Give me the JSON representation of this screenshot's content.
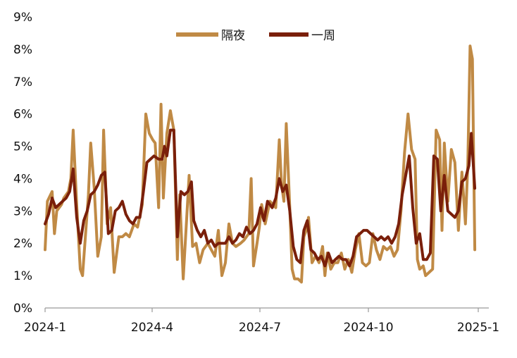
{
  "chart_data": {
    "type": "line",
    "title": "",
    "xlabel": "",
    "ylabel": "",
    "x_ticks": [
      "2024-1",
      "2024-4",
      "2024-7",
      "2024-10",
      "2025-1"
    ],
    "y_ticks": [
      "0%",
      "1%",
      "2%",
      "3%",
      "4%",
      "5%",
      "6%",
      "7%",
      "8%",
      "9%"
    ],
    "xlim": [
      "2024-01-02",
      "2025-01-15"
    ],
    "ylim": [
      0,
      9
    ],
    "grid": false,
    "legend_position": "top-center",
    "series": [
      {
        "name": "隔夜",
        "color": "#C08A45",
        "points": [
          [
            "2024-01-02",
            1.8
          ],
          [
            "2024-01-04",
            3.3
          ],
          [
            "2024-01-08",
            3.6
          ],
          [
            "2024-01-10",
            2.3
          ],
          [
            "2024-01-12",
            3.0
          ],
          [
            "2024-01-16",
            3.2
          ],
          [
            "2024-01-18",
            3.4
          ],
          [
            "2024-01-22",
            3.6
          ],
          [
            "2024-01-24",
            4.0
          ],
          [
            "2024-01-26",
            5.5
          ],
          [
            "2024-01-29",
            3.2
          ],
          [
            "2024-02-01",
            1.2
          ],
          [
            "2024-02-03",
            1.0
          ],
          [
            "2024-02-06",
            2.5
          ],
          [
            "2024-02-08",
            3.5
          ],
          [
            "2024-02-10",
            5.1
          ],
          [
            "2024-02-13",
            3.7
          ],
          [
            "2024-02-16",
            1.6
          ],
          [
            "2024-02-19",
            2.2
          ],
          [
            "2024-02-21",
            5.5
          ],
          [
            "2024-02-24",
            2.6
          ],
          [
            "2024-02-27",
            3.1
          ],
          [
            "2024-03-01",
            1.1
          ],
          [
            "2024-03-05",
            2.2
          ],
          [
            "2024-03-08",
            2.2
          ],
          [
            "2024-03-11",
            2.3
          ],
          [
            "2024-03-14",
            2.2
          ],
          [
            "2024-03-18",
            2.6
          ],
          [
            "2024-03-21",
            2.5
          ],
          [
            "2024-03-25",
            3.2
          ],
          [
            "2024-03-28",
            6.0
          ],
          [
            "2024-03-31",
            5.4
          ],
          [
            "2024-04-03",
            5.2
          ],
          [
            "2024-04-05",
            5.1
          ],
          [
            "2024-04-08",
            3.1
          ],
          [
            "2024-04-10",
            6.3
          ],
          [
            "2024-04-12",
            3.4
          ],
          [
            "2024-04-15",
            5.4
          ],
          [
            "2024-04-18",
            6.1
          ],
          [
            "2024-04-21",
            5.5
          ],
          [
            "2024-04-24",
            1.5
          ],
          [
            "2024-04-26",
            3.5
          ],
          [
            "2024-04-29",
            0.9
          ],
          [
            "2024-05-02",
            2.8
          ],
          [
            "2024-05-04",
            4.1
          ],
          [
            "2024-05-07",
            1.9
          ],
          [
            "2024-05-10",
            2.0
          ],
          [
            "2024-05-13",
            1.4
          ],
          [
            "2024-05-16",
            1.8
          ],
          [
            "2024-05-20",
            2.0
          ],
          [
            "2024-05-23",
            1.8
          ],
          [
            "2024-05-26",
            1.6
          ],
          [
            "2024-05-29",
            2.4
          ],
          [
            "2024-06-01",
            1.0
          ],
          [
            "2024-06-04",
            1.4
          ],
          [
            "2024-06-07",
            2.6
          ],
          [
            "2024-06-10",
            2.0
          ],
          [
            "2024-06-13",
            1.9
          ],
          [
            "2024-06-17",
            2.0
          ],
          [
            "2024-06-20",
            2.1
          ],
          [
            "2024-06-24",
            2.3
          ],
          [
            "2024-06-26",
            4.0
          ],
          [
            "2024-06-28",
            1.3
          ],
          [
            "2024-07-01",
            2.0
          ],
          [
            "2024-07-03",
            2.5
          ],
          [
            "2024-07-05",
            3.2
          ],
          [
            "2024-07-08",
            2.6
          ],
          [
            "2024-07-12",
            3.3
          ],
          [
            "2024-07-17",
            3.1
          ],
          [
            "2024-07-20",
            5.2
          ],
          [
            "2024-07-22",
            3.8
          ],
          [
            "2024-07-24",
            3.3
          ],
          [
            "2024-07-26",
            5.7
          ],
          [
            "2024-07-29",
            3.1
          ],
          [
            "2024-07-31",
            1.2
          ],
          [
            "2024-08-02",
            0.9
          ],
          [
            "2024-08-05",
            0.9
          ],
          [
            "2024-08-08",
            0.8
          ],
          [
            "2024-08-10",
            2.2
          ],
          [
            "2024-08-12",
            2.4
          ],
          [
            "2024-08-14",
            2.8
          ],
          [
            "2024-08-17",
            1.4
          ],
          [
            "2024-08-20",
            1.6
          ],
          [
            "2024-08-23",
            1.4
          ],
          [
            "2024-08-26",
            1.9
          ],
          [
            "2024-08-28",
            1.0
          ],
          [
            "2024-08-30",
            1.7
          ],
          [
            "2024-09-02",
            1.2
          ],
          [
            "2024-09-05",
            1.4
          ],
          [
            "2024-09-08",
            1.4
          ],
          [
            "2024-09-11",
            1.7
          ],
          [
            "2024-09-14",
            1.2
          ],
          [
            "2024-09-17",
            1.5
          ],
          [
            "2024-09-20",
            1.1
          ],
          [
            "2024-09-23",
            1.8
          ],
          [
            "2024-09-26",
            2.3
          ],
          [
            "2024-09-29",
            1.4
          ],
          [
            "2024-10-02",
            1.3
          ],
          [
            "2024-10-05",
            1.4
          ],
          [
            "2024-10-08",
            2.3
          ],
          [
            "2024-10-11",
            1.8
          ],
          [
            "2024-10-14",
            1.5
          ],
          [
            "2024-10-17",
            1.9
          ],
          [
            "2024-10-20",
            1.8
          ],
          [
            "2024-10-23",
            1.9
          ],
          [
            "2024-10-26",
            1.6
          ],
          [
            "2024-10-29",
            1.8
          ],
          [
            "2024-11-01",
            3.0
          ],
          [
            "2024-11-04",
            4.8
          ],
          [
            "2024-11-07",
            6.0
          ],
          [
            "2024-11-10",
            4.9
          ],
          [
            "2024-11-13",
            4.6
          ],
          [
            "2024-11-15",
            1.5
          ],
          [
            "2024-11-17",
            1.2
          ],
          [
            "2024-11-20",
            1.3
          ],
          [
            "2024-11-22",
            1.0
          ],
          [
            "2024-11-25",
            1.1
          ],
          [
            "2024-11-28",
            1.2
          ],
          [
            "2024-12-01",
            5.5
          ],
          [
            "2024-12-04",
            5.2
          ],
          [
            "2024-12-06",
            2.4
          ],
          [
            "2024-12-08",
            5.1
          ],
          [
            "2024-12-11",
            3.3
          ],
          [
            "2024-12-14",
            4.9
          ],
          [
            "2024-12-17",
            4.5
          ],
          [
            "2024-12-20",
            2.4
          ],
          [
            "2024-12-23",
            4.2
          ],
          [
            "2024-12-26",
            2.6
          ],
          [
            "2024-12-28",
            4.4
          ],
          [
            "2024-12-30",
            8.1
          ],
          [
            "2025-01-01",
            7.7
          ],
          [
            "2025-01-03",
            1.8
          ]
        ]
      },
      {
        "name": "一周",
        "color": "#7A1F0A",
        "points": [
          [
            "2024-01-02",
            2.6
          ],
          [
            "2024-01-05",
            2.9
          ],
          [
            "2024-01-08",
            3.4
          ],
          [
            "2024-01-11",
            3.1
          ],
          [
            "2024-01-14",
            3.2
          ],
          [
            "2024-01-17",
            3.3
          ],
          [
            "2024-01-20",
            3.4
          ],
          [
            "2024-01-23",
            3.6
          ],
          [
            "2024-01-26",
            4.3
          ],
          [
            "2024-01-29",
            2.8
          ],
          [
            "2024-02-01",
            2.0
          ],
          [
            "2024-02-04",
            2.7
          ],
          [
            "2024-02-07",
            3.0
          ],
          [
            "2024-02-10",
            3.5
          ],
          [
            "2024-02-13",
            3.6
          ],
          [
            "2024-02-16",
            3.8
          ],
          [
            "2024-02-19",
            4.1
          ],
          [
            "2024-02-22",
            4.2
          ],
          [
            "2024-02-25",
            2.3
          ],
          [
            "2024-02-28",
            2.4
          ],
          [
            "2024-03-02",
            3.0
          ],
          [
            "2024-03-05",
            3.1
          ],
          [
            "2024-03-08",
            3.3
          ],
          [
            "2024-03-11",
            2.9
          ],
          [
            "2024-03-14",
            2.7
          ],
          [
            "2024-03-17",
            2.6
          ],
          [
            "2024-03-20",
            2.8
          ],
          [
            "2024-03-23",
            2.8
          ],
          [
            "2024-03-26",
            3.6
          ],
          [
            "2024-03-29",
            4.5
          ],
          [
            "2024-04-01",
            4.6
          ],
          [
            "2024-04-04",
            4.7
          ],
          [
            "2024-04-08",
            4.6
          ],
          [
            "2024-04-11",
            4.6
          ],
          [
            "2024-04-13",
            5.0
          ],
          [
            "2024-04-15",
            4.7
          ],
          [
            "2024-04-18",
            5.5
          ],
          [
            "2024-04-21",
            5.5
          ],
          [
            "2024-04-24",
            2.2
          ],
          [
            "2024-04-27",
            3.6
          ],
          [
            "2024-04-30",
            3.5
          ],
          [
            "2024-05-03",
            3.6
          ],
          [
            "2024-05-06",
            3.9
          ],
          [
            "2024-05-08",
            2.7
          ],
          [
            "2024-05-11",
            2.4
          ],
          [
            "2024-05-14",
            2.2
          ],
          [
            "2024-05-17",
            2.4
          ],
          [
            "2024-05-20",
            2.0
          ],
          [
            "2024-05-23",
            2.1
          ],
          [
            "2024-05-26",
            1.9
          ],
          [
            "2024-05-29",
            2.0
          ],
          [
            "2024-06-01",
            2.0
          ],
          [
            "2024-06-04",
            2.0
          ],
          [
            "2024-06-07",
            2.2
          ],
          [
            "2024-06-10",
            2.0
          ],
          [
            "2024-06-13",
            2.1
          ],
          [
            "2024-06-16",
            2.3
          ],
          [
            "2024-06-19",
            2.2
          ],
          [
            "2024-06-22",
            2.5
          ],
          [
            "2024-06-25",
            2.3
          ],
          [
            "2024-06-28",
            2.4
          ],
          [
            "2024-07-01",
            2.6
          ],
          [
            "2024-07-04",
            3.1
          ],
          [
            "2024-07-07",
            2.7
          ],
          [
            "2024-07-10",
            3.3
          ],
          [
            "2024-07-14",
            3.1
          ],
          [
            "2024-07-17",
            3.4
          ],
          [
            "2024-07-20",
            4.0
          ],
          [
            "2024-07-23",
            3.6
          ],
          [
            "2024-07-26",
            3.8
          ],
          [
            "2024-07-29",
            3.0
          ],
          [
            "2024-08-01",
            1.9
          ],
          [
            "2024-08-04",
            1.5
          ],
          [
            "2024-08-07",
            1.4
          ],
          [
            "2024-08-10",
            2.4
          ],
          [
            "2024-08-13",
            2.7
          ],
          [
            "2024-08-16",
            1.8
          ],
          [
            "2024-08-19",
            1.7
          ],
          [
            "2024-08-22",
            1.5
          ],
          [
            "2024-08-25",
            1.6
          ],
          [
            "2024-08-28",
            1.3
          ],
          [
            "2024-08-31",
            1.7
          ],
          [
            "2024-09-03",
            1.4
          ],
          [
            "2024-09-06",
            1.5
          ],
          [
            "2024-09-09",
            1.6
          ],
          [
            "2024-09-12",
            1.5
          ],
          [
            "2024-09-15",
            1.5
          ],
          [
            "2024-09-18",
            1.3
          ],
          [
            "2024-09-21",
            1.6
          ],
          [
            "2024-09-24",
            2.2
          ],
          [
            "2024-09-27",
            2.3
          ],
          [
            "2024-09-30",
            2.4
          ],
          [
            "2024-10-03",
            2.4
          ],
          [
            "2024-10-06",
            2.3
          ],
          [
            "2024-10-09",
            2.2
          ],
          [
            "2024-10-12",
            2.1
          ],
          [
            "2024-10-15",
            2.2
          ],
          [
            "2024-10-18",
            2.1
          ],
          [
            "2024-10-21",
            2.2
          ],
          [
            "2024-10-24",
            2.0
          ],
          [
            "2024-10-27",
            2.2
          ],
          [
            "2024-10-30",
            2.6
          ],
          [
            "2024-11-02",
            3.5
          ],
          [
            "2024-11-05",
            4.1
          ],
          [
            "2024-11-08",
            4.7
          ],
          [
            "2024-11-11",
            3.1
          ],
          [
            "2024-11-14",
            2.0
          ],
          [
            "2024-11-17",
            2.3
          ],
          [
            "2024-11-20",
            1.5
          ],
          [
            "2024-11-23",
            1.5
          ],
          [
            "2024-11-26",
            1.7
          ],
          [
            "2024-11-29",
            4.7
          ],
          [
            "2024-12-02",
            4.6
          ],
          [
            "2024-12-05",
            3.0
          ],
          [
            "2024-12-08",
            4.1
          ],
          [
            "2024-12-11",
            3.0
          ],
          [
            "2024-12-14",
            2.9
          ],
          [
            "2024-12-17",
            2.8
          ],
          [
            "2024-12-20",
            3.0
          ],
          [
            "2024-12-23",
            3.9
          ],
          [
            "2024-12-26",
            4.0
          ],
          [
            "2024-12-29",
            4.4
          ],
          [
            "2024-12-31",
            5.4
          ],
          [
            "2025-01-03",
            3.7
          ]
        ]
      }
    ]
  }
}
